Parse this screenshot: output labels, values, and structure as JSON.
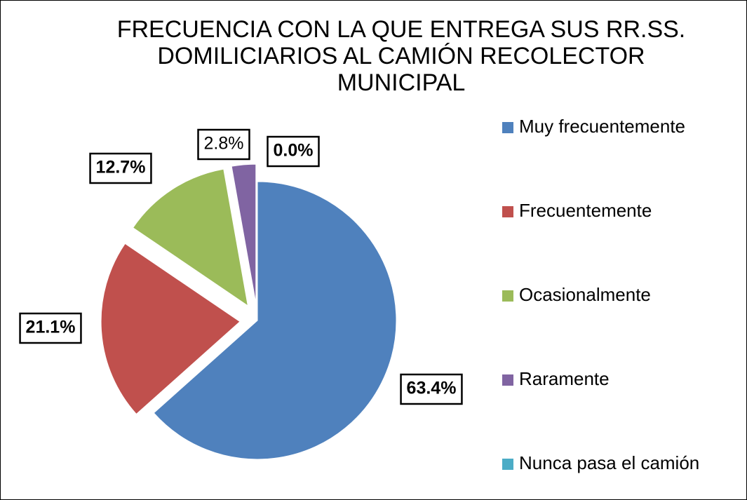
{
  "chart_data": {
    "type": "pie",
    "title": [
      "FRECUENCIA CON LA QUE ENTREGA SUS RR.SS.",
      "DOMILICIARIOS AL CAMIÓN RECOLECTOR",
      "MUNICIPAL"
    ],
    "categories": [
      "Muy frecuentemente",
      "Frecuentemente",
      "Ocasionalmente",
      "Raramente",
      "Nunca pasa el camión"
    ],
    "values": [
      63.4,
      21.1,
      12.7,
      2.8,
      0.0
    ],
    "value_labels": [
      "63.4%",
      "21.1%",
      "12.7%",
      "2.8%",
      "0.0%"
    ],
    "colors": [
      "#4f81bd",
      "#c0504d",
      "#9bbb59",
      "#8064a2",
      "#4bacc6"
    ],
    "legend": "right"
  }
}
